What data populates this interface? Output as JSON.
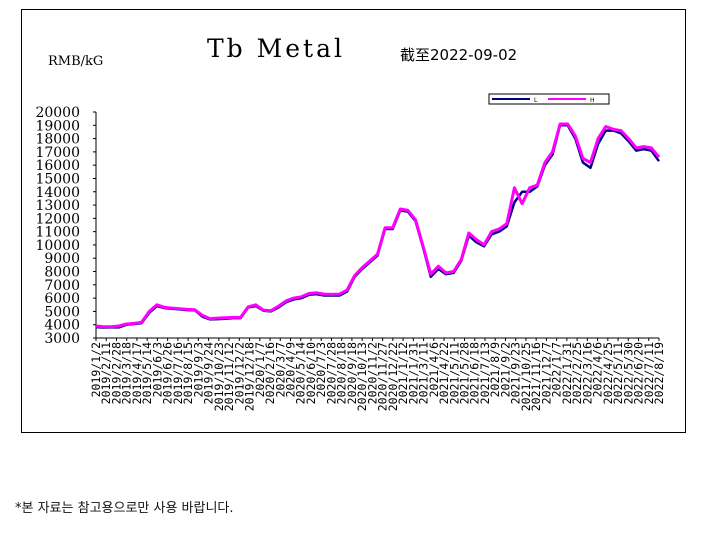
{
  "chart_data": {
    "type": "line",
    "title": "Tb Metal",
    "date_note": "截至2022-09-02",
    "ylabel": "RMB/kG",
    "ylim": [
      3000,
      20000
    ],
    "y_ticks": [
      3000,
      4000,
      5000,
      6000,
      7000,
      8000,
      9000,
      10000,
      11000,
      12000,
      13000,
      14000,
      15000,
      16000,
      17000,
      18000,
      19000,
      20000
    ],
    "grid": false,
    "legend_position": "top-right",
    "x_tick_labels": [
      "2019/1/2",
      "2019/2/11",
      "2019/2/28",
      "2019/3/18",
      "2019/4/17",
      "2019/5/14",
      "2019/6/3",
      "2019/6/26",
      "2019/7/16",
      "2019/8/15",
      "2019/9/3",
      "2019/9/24",
      "2019/10/23",
      "2019/11/12",
      "2019/12/2",
      "2019/12/18",
      "2020/1/7",
      "2020/2/16",
      "2020/3/7",
      "2020/4/9",
      "2020/5/14",
      "2020/6/10",
      "2020/7/3",
      "2020/7/28",
      "2020/8/18",
      "2020/9/18",
      "2020/10/13",
      "2020/11/2",
      "2020/11/27",
      "2020/12/22",
      "2021/1/12",
      "2021/1/31",
      "2021/3/11",
      "2021/4/6",
      "2021/4/22",
      "2021/5/11",
      "2021/5/28",
      "2021/6/18",
      "2021/7/13",
      "2021/8/9",
      "2021/9/2",
      "2021/9/23",
      "2021/10/25",
      "2021/11/16",
      "2021/12/7",
      "2022/1/7",
      "2022/1/31",
      "2022/2/25",
      "2022/3/16",
      "2022/4/6",
      "2022/4/25",
      "2022/5/11",
      "2022/5/30",
      "2022/6/20",
      "2022/7/11",
      "2022/8/19"
    ],
    "series": [
      {
        "name": "L",
        "color": "#000080",
        "values": [
          3820,
          3790,
          3800,
          3800,
          4000,
          4050,
          4120,
          4900,
          5400,
          5250,
          5200,
          5150,
          5100,
          5080,
          4600,
          4400,
          4420,
          4450,
          4500,
          4500,
          5300,
          5400,
          5050,
          5000,
          5300,
          5700,
          5900,
          6000,
          6250,
          6300,
          6200,
          6200,
          6200,
          6500,
          7600,
          8200,
          8700,
          9200,
          11200,
          11200,
          12600,
          12500,
          11800,
          9800,
          7600,
          8200,
          7800,
          7900,
          8800,
          10700,
          10200,
          9900,
          10800,
          11000,
          11400,
          13200,
          14000,
          14000,
          14400,
          16000,
          16800,
          19000,
          19000,
          18000,
          16200,
          15800,
          17600,
          18600,
          18600,
          18400,
          17800,
          17100,
          17200,
          17100,
          16300
        ]
      },
      {
        "name": "H",
        "color": "#ff00ff",
        "values": [
          3900,
          3850,
          3850,
          3900,
          4050,
          4100,
          4180,
          5000,
          5500,
          5300,
          5250,
          5200,
          5150,
          5120,
          4700,
          4450,
          4500,
          4520,
          4550,
          4550,
          5350,
          5500,
          5100,
          5050,
          5400,
          5800,
          6000,
          6100,
          6350,
          6400,
          6300,
          6280,
          6300,
          6600,
          7700,
          8300,
          8800,
          9300,
          11300,
          11300,
          12700,
          12600,
          11900,
          9900,
          7800,
          8400,
          7900,
          8000,
          8900,
          10900,
          10400,
          10000,
          11000,
          11200,
          11600,
          14300,
          13100,
          14300,
          14500,
          16200,
          17000,
          19100,
          19100,
          18200,
          16500,
          16200,
          18000,
          18900,
          18700,
          18600,
          18000,
          17300,
          17400,
          17300,
          16600
        ]
      }
    ]
  },
  "footnote": "*본 자료는 참고용으로만 사용 바랍니다."
}
